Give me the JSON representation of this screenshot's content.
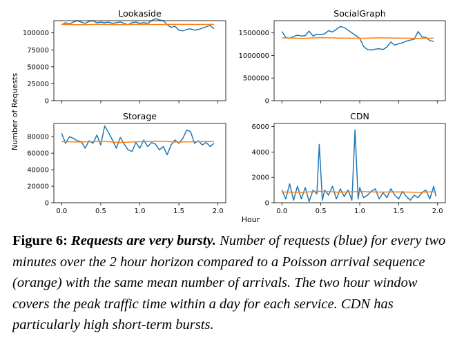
{
  "figure": {
    "y_axis_label": "Number of Requests",
    "x_axis_label": "Hour",
    "colors": {
      "observed": "#1f77b4",
      "poisson": "#ff7f0e"
    }
  },
  "caption": {
    "label": "Figure 6:",
    "headline": "Requests are very bursty.",
    "body": "Number of requests (blue) for every two minutes over the 2 hour horizon compared to a Poisson arrival sequence (orange) with the same mean number of arrivals. The two hour window covers the peak traffic time within a day for each service. CDN has particularly high short-term bursts."
  },
  "chart_data": [
    {
      "type": "line",
      "title": "Lookaside",
      "xlabel": "Hour",
      "ylabel": "Number of Requests",
      "xlim": [
        0,
        2
      ],
      "ylim": [
        0,
        118000
      ],
      "yticks": [
        0,
        25000,
        50000,
        75000,
        100000
      ],
      "ytick_labels": [
        "0",
        "25000",
        "50000",
        "75000",
        "100000"
      ],
      "xticks": [
        0.0,
        0.5,
        1.0,
        1.5,
        2.0
      ],
      "xtick_labels": [],
      "series": [
        {
          "role": "observed",
          "x": [
            0.0,
            0.05,
            0.1,
            0.15,
            0.2,
            0.25,
            0.3,
            0.35,
            0.4,
            0.45,
            0.5,
            0.55,
            0.6,
            0.65,
            0.7,
            0.75,
            0.8,
            0.85,
            0.9,
            0.95,
            1.0,
            1.05,
            1.1,
            1.15,
            1.2,
            1.25,
            1.3,
            1.35,
            1.4,
            1.45,
            1.5,
            1.55,
            1.6,
            1.65,
            1.7,
            1.75,
            1.8,
            1.85,
            1.9,
            1.95
          ],
          "y": [
            112000,
            115000,
            113000,
            116000,
            118000,
            116000,
            114000,
            117000,
            118000,
            115000,
            116000,
            115000,
            116000,
            114000,
            115000,
            116000,
            114000,
            112000,
            115000,
            116000,
            114000,
            115000,
            114000,
            118000,
            121000,
            119000,
            118000,
            112000,
            108000,
            110000,
            104000,
            103000,
            105000,
            106000,
            104000,
            105000,
            107000,
            109000,
            111000,
            106000
          ]
        },
        {
          "role": "poisson",
          "x": [
            0.0,
            0.25,
            0.5,
            0.75,
            1.0,
            1.25,
            1.5,
            1.75,
            1.95
          ],
          "y": [
            112500,
            112000,
            112800,
            112200,
            112600,
            112300,
            112700,
            112400,
            112600
          ]
        }
      ]
    },
    {
      "type": "line",
      "title": "SocialGraph",
      "xlabel": "Hour",
      "ylabel": "Number of Requests",
      "xlim": [
        0,
        2
      ],
      "ylim": [
        0,
        1770000
      ],
      "yticks": [
        0,
        500000,
        1000000,
        1500000
      ],
      "ytick_labels": [
        "0",
        "500000",
        "1000000",
        "1500000"
      ],
      "xticks": [
        0.0,
        0.5,
        1.0,
        1.5,
        2.0
      ],
      "xtick_labels": [],
      "series": [
        {
          "role": "observed",
          "x": [
            0.0,
            0.05,
            0.1,
            0.15,
            0.2,
            0.25,
            0.3,
            0.35,
            0.4,
            0.45,
            0.5,
            0.55,
            0.6,
            0.65,
            0.7,
            0.75,
            0.8,
            0.85,
            0.9,
            0.95,
            1.0,
            1.05,
            1.1,
            1.15,
            1.2,
            1.25,
            1.3,
            1.35,
            1.4,
            1.45,
            1.5,
            1.55,
            1.6,
            1.65,
            1.7,
            1.75,
            1.8,
            1.85,
            1.9,
            1.95
          ],
          "y": [
            1530000,
            1400000,
            1380000,
            1420000,
            1450000,
            1430000,
            1440000,
            1540000,
            1430000,
            1470000,
            1460000,
            1480000,
            1550000,
            1520000,
            1580000,
            1640000,
            1620000,
            1560000,
            1500000,
            1440000,
            1380000,
            1200000,
            1130000,
            1120000,
            1140000,
            1150000,
            1130000,
            1190000,
            1300000,
            1230000,
            1260000,
            1280000,
            1320000,
            1340000,
            1360000,
            1530000,
            1410000,
            1400000,
            1330000,
            1310000
          ]
        },
        {
          "role": "poisson",
          "x": [
            0.0,
            0.25,
            0.5,
            0.75,
            1.0,
            1.25,
            1.5,
            1.75,
            1.95
          ],
          "y": [
            1390000,
            1380000,
            1395000,
            1385000,
            1380000,
            1390000,
            1385000,
            1380000,
            1385000
          ]
        }
      ]
    },
    {
      "type": "line",
      "title": "Storage",
      "xlabel": "Hour",
      "ylabel": "Number of Requests",
      "xlim": [
        0,
        2
      ],
      "ylim": [
        0,
        96000
      ],
      "yticks": [
        0,
        20000,
        40000,
        60000,
        80000
      ],
      "ytick_labels": [
        "0",
        "20000",
        "40000",
        "60000",
        "80000"
      ],
      "xticks": [
        0.0,
        0.5,
        1.0,
        1.5,
        2.0
      ],
      "xtick_labels": [
        "0.0",
        "0.5",
        "1.0",
        "1.5",
        "2.0"
      ],
      "series": [
        {
          "role": "observed",
          "x": [
            0.0,
            0.05,
            0.1,
            0.15,
            0.2,
            0.25,
            0.3,
            0.35,
            0.4,
            0.45,
            0.5,
            0.55,
            0.6,
            0.65,
            0.7,
            0.75,
            0.8,
            0.85,
            0.9,
            0.95,
            1.0,
            1.05,
            1.1,
            1.15,
            1.2,
            1.25,
            1.3,
            1.35,
            1.4,
            1.45,
            1.5,
            1.55,
            1.6,
            1.65,
            1.7,
            1.75,
            1.8,
            1.85,
            1.9,
            1.95
          ],
          "y": [
            84000,
            72000,
            80000,
            78000,
            75000,
            74000,
            66000,
            75000,
            72000,
            82000,
            70000,
            93000,
            85000,
            76000,
            66000,
            79000,
            71000,
            64000,
            62000,
            73000,
            66000,
            76000,
            68000,
            73000,
            71000,
            64000,
            68000,
            58000,
            70000,
            76000,
            72000,
            78000,
            88000,
            86000,
            72000,
            75000,
            70000,
            73000,
            68000,
            72000
          ]
        },
        {
          "role": "poisson",
          "x": [
            0.0,
            0.25,
            0.5,
            0.75,
            1.0,
            1.25,
            1.5,
            1.75,
            1.95
          ],
          "y": [
            74000,
            73500,
            74500,
            73000,
            74000,
            74500,
            73500,
            74000,
            74200
          ]
        }
      ]
    },
    {
      "type": "line",
      "title": "CDN",
      "xlabel": "Hour",
      "ylabel": "Number of Requests",
      "xlim": [
        0,
        2
      ],
      "ylim": [
        0,
        6250
      ],
      "yticks": [
        0,
        2000,
        4000,
        6000
      ],
      "ytick_labels": [
        "0",
        "2000",
        "4000",
        "6000"
      ],
      "xticks": [
        0.0,
        0.5,
        1.0,
        1.5,
        2.0
      ],
      "xtick_labels": [
        "0.0",
        "0.5",
        "1.0",
        "1.5",
        "2.0"
      ],
      "series": [
        {
          "role": "observed",
          "x": [
            0.0,
            0.05,
            0.1,
            0.15,
            0.2,
            0.25,
            0.3,
            0.35,
            0.4,
            0.45,
            0.48,
            0.52,
            0.55,
            0.6,
            0.65,
            0.7,
            0.75,
            0.8,
            0.85,
            0.9,
            0.94,
            0.98,
            1.0,
            1.05,
            1.1,
            1.15,
            1.2,
            1.25,
            1.3,
            1.35,
            1.4,
            1.45,
            1.5,
            1.55,
            1.6,
            1.65,
            1.7,
            1.75,
            1.8,
            1.85,
            1.9,
            1.95,
            1.98
          ],
          "y": [
            1000,
            300,
            1500,
            200,
            1300,
            300,
            1200,
            100,
            1000,
            700,
            4600,
            200,
            1000,
            600,
            1300,
            300,
            1100,
            500,
            1000,
            200,
            5750,
            300,
            1200,
            400,
            600,
            900,
            1100,
            300,
            800,
            400,
            1100,
            600,
            300,
            900,
            500,
            200,
            600,
            400,
            800,
            1000,
            300,
            1300,
            500
          ]
        },
        {
          "role": "poisson",
          "x": [
            0.0,
            0.25,
            0.5,
            0.75,
            1.0,
            1.25,
            1.5,
            1.75,
            1.98
          ],
          "y": [
            850,
            820,
            900,
            830,
            880,
            840,
            860,
            820,
            870
          ]
        }
      ]
    }
  ]
}
